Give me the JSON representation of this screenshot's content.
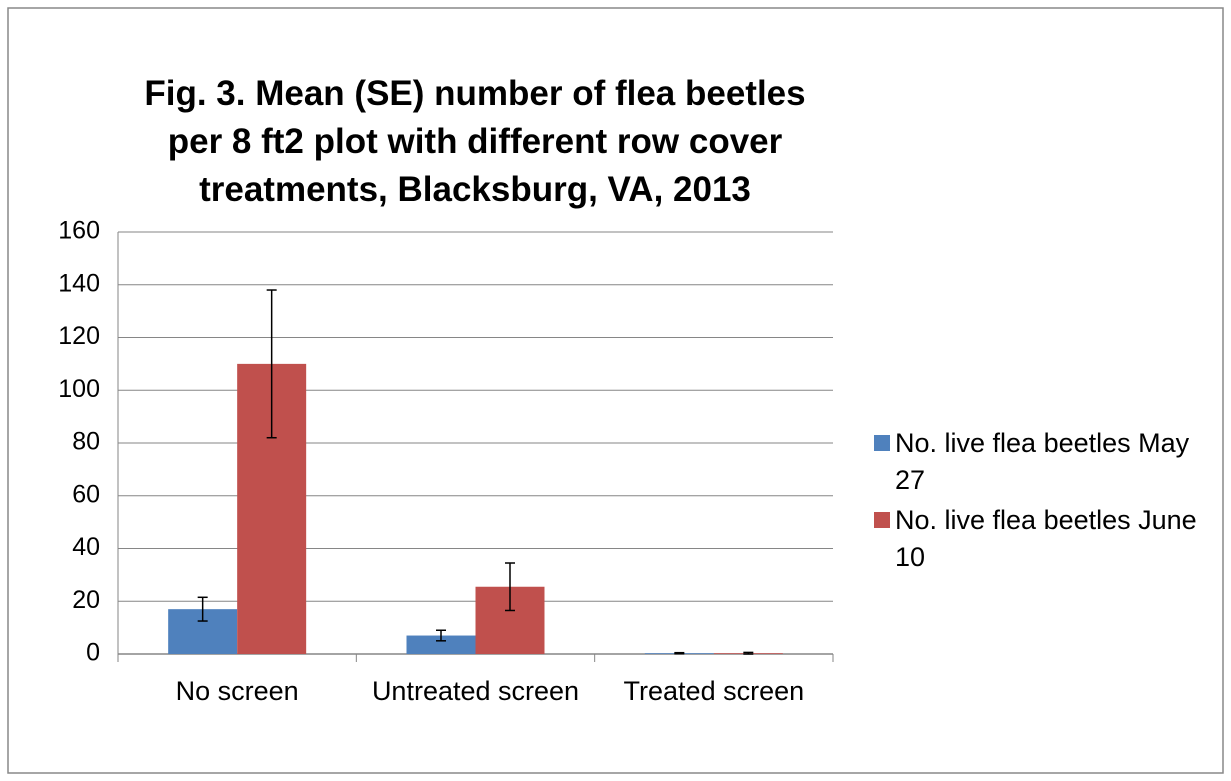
{
  "chart_data": {
    "type": "bar",
    "title": "Fig. 3. Mean (SE) number of flea beetles per 8 ft2 plot with different row cover treatments, Blacksburg, VA, 2013",
    "categories": [
      "No screen",
      "Untreated screen",
      "Treated screen"
    ],
    "series": [
      {
        "name": "No. live flea beetles May 27",
        "color": "#4f81bd",
        "values": [
          17,
          7,
          0.3
        ],
        "errors": [
          4.5,
          2,
          0.2
        ]
      },
      {
        "name": "No. live flea beetles June 10",
        "color": "#c0504d",
        "values": [
          110,
          25.5,
          0.3
        ],
        "errors": [
          28,
          9,
          0.3
        ]
      }
    ],
    "ylim": [
      0,
      160
    ],
    "yticks": [
      0,
      20,
      40,
      60,
      80,
      100,
      120,
      140,
      160
    ],
    "grid": true,
    "legend": "right"
  }
}
